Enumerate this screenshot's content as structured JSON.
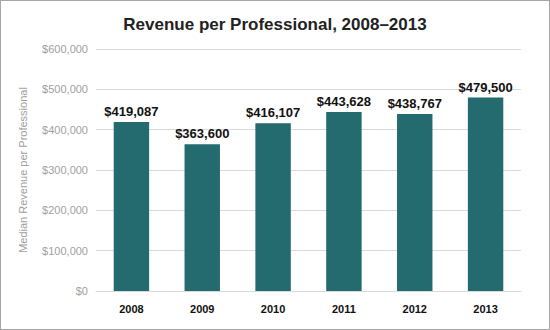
{
  "chart_data": {
    "type": "bar",
    "title": "Revenue per Professional, 2008–2013",
    "y_label": "Median Revenue per Professional",
    "categories": [
      "2008",
      "2009",
      "2010",
      "2011",
      "2012",
      "2013"
    ],
    "values": [
      419087,
      363600,
      416107,
      443628,
      438767,
      479500
    ],
    "value_labels": [
      "$419,087",
      "$363,600",
      "$416,107",
      "$443,628",
      "$438,767",
      "$479,500"
    ],
    "color": "#236b6f",
    "ylim": [
      0,
      600000
    ],
    "yticks": [
      {
        "value": 0,
        "label": "$0"
      },
      {
        "value": 100000,
        "label": "$100,000"
      },
      {
        "value": 200000,
        "label": "$200,000"
      },
      {
        "value": 300000,
        "label": "$300,000"
      },
      {
        "value": 400000,
        "label": "$400,000"
      },
      {
        "value": 500000,
        "label": "$500,000"
      },
      {
        "value": 600000,
        "label": "$600,000"
      }
    ],
    "grid": true,
    "data_labels": true
  }
}
